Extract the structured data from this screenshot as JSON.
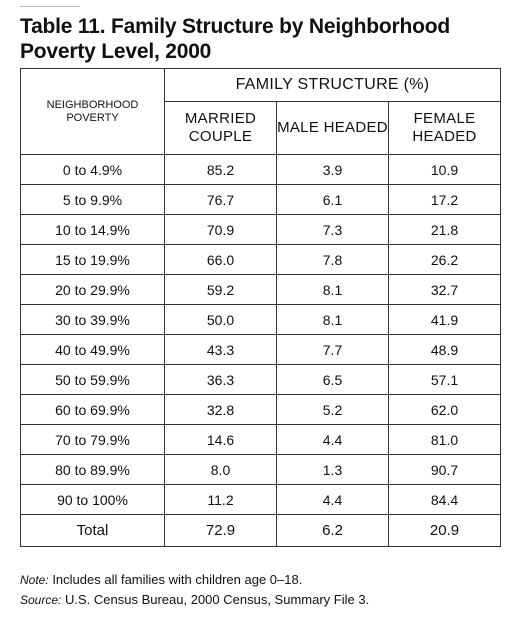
{
  "title": "Table 11. Family Structure by Neighborhood Poverty Level, 2000",
  "table": {
    "row_header": "NEIGHBORHOOD POVERTY",
    "group_header": "FAMILY STRUCTURE (%)",
    "columns": [
      "MARRIED COUPLE",
      "MALE HEADED",
      "FEMALE HEADED"
    ],
    "rows": [
      [
        "0 to 4.9%",
        "85.2",
        "3.9",
        "10.9"
      ],
      [
        "5 to 9.9%",
        "76.7",
        "6.1",
        "17.2"
      ],
      [
        "10 to 14.9%",
        "70.9",
        "7.3",
        "21.8"
      ],
      [
        "15 to 19.9%",
        "66.0",
        "7.8",
        "26.2"
      ],
      [
        "20 to 29.9%",
        "59.2",
        "8.1",
        "32.7"
      ],
      [
        "30 to 39.9%",
        "50.0",
        "8.1",
        "41.9"
      ],
      [
        "40 to 49.9%",
        "43.3",
        "7.7",
        "48.9"
      ],
      [
        "50 to 59.9%",
        "36.3",
        "6.5",
        "57.1"
      ],
      [
        "60 to 69.9%",
        "32.8",
        "5.2",
        "62.0"
      ],
      [
        "70 to 79.9%",
        "14.6",
        "4.4",
        "81.0"
      ],
      [
        "80 to 89.9%",
        "8.0",
        "1.3",
        "90.7"
      ],
      [
        "90 to 100%",
        "11.2",
        "4.4",
        "84.4"
      ],
      [
        "Total",
        "72.9",
        "6.2",
        "20.9"
      ]
    ]
  },
  "notes": {
    "note_label": "Note:",
    "note_text": "Includes all families with children age 0–18.",
    "source_label": "Source:",
    "source_text": "U.S. Census Bureau, 2000 Census, Summary File 3."
  }
}
